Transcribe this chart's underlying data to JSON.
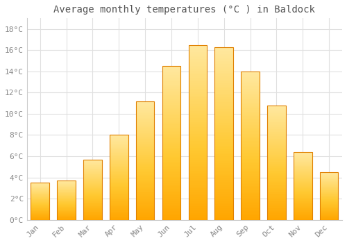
{
  "title": "Average monthly temperatures (°C ) in Baldock",
  "months": [
    "Jan",
    "Feb",
    "Mar",
    "Apr",
    "May",
    "Jun",
    "Jul",
    "Aug",
    "Sep",
    "Oct",
    "Nov",
    "Dec"
  ],
  "temperatures": [
    3.5,
    3.7,
    5.7,
    8.0,
    11.2,
    14.5,
    16.5,
    16.3,
    14.0,
    10.8,
    6.4,
    4.5
  ],
  "bar_color_bottom": "#FFA500",
  "bar_color_mid": "#FFD060",
  "bar_color_top": "#FFE090",
  "bar_border_color": "#E08000",
  "ylim": [
    0,
    19
  ],
  "yticks": [
    0,
    2,
    4,
    6,
    8,
    10,
    12,
    14,
    16,
    18
  ],
  "ytick_labels": [
    "0°C",
    "2°C",
    "4°C",
    "6°C",
    "8°C",
    "10°C",
    "12°C",
    "14°C",
    "16°C",
    "18°C"
  ],
  "background_color": "#ffffff",
  "grid_color": "#e0e0e0",
  "title_fontsize": 10,
  "tick_fontsize": 8,
  "tick_color": "#888888",
  "font_family": "monospace",
  "bar_width": 0.7
}
